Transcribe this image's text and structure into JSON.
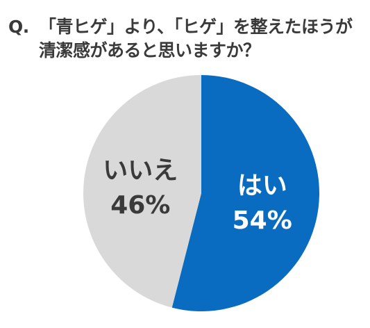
{
  "title": {
    "prefix": "Q.",
    "line1": "「青ヒゲ」より、「ヒゲ」を整えたほうが",
    "line2": "清潔感があると思いますか？"
  },
  "colors": {
    "yes": "#0a6cc0",
    "no": "#d9d9d9",
    "yes_text": "#ffffff",
    "no_text": "#3a3a3a"
  },
  "chart_data": {
    "type": "pie",
    "title": "Q.「青ヒゲ」より、「ヒゲ」を整えたほうが 清潔感があると思いますか？",
    "slices": [
      {
        "label": "はい",
        "value": 54,
        "display": "54%"
      },
      {
        "label": "いいえ",
        "value": 46,
        "display": "46%"
      }
    ]
  }
}
